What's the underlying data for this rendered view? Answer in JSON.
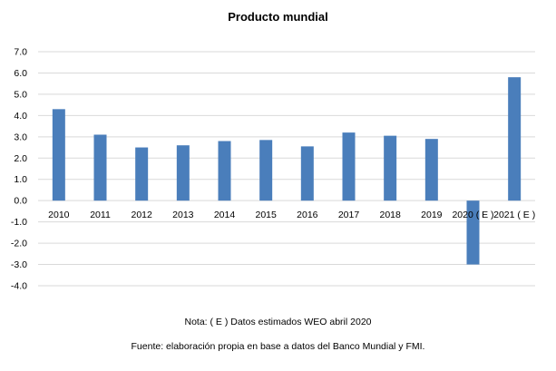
{
  "chart_data": {
    "type": "bar",
    "title": "Producto mundial",
    "categories": [
      "2010",
      "2011",
      "2012",
      "2013",
      "2014",
      "2015",
      "2016",
      "2017",
      "2018",
      "2019",
      "2020 ( E )",
      "2021 ( E )"
    ],
    "values": [
      4.3,
      3.1,
      2.5,
      2.6,
      2.8,
      2.85,
      2.55,
      3.2,
      3.05,
      2.9,
      -3.0,
      5.8
    ],
    "ylim": [
      -4.0,
      7.0
    ],
    "yticks": [
      "7.0",
      "6.0",
      "5.0",
      "4.0",
      "3.0",
      "2.0",
      "1.0",
      "0.0",
      "-1.0",
      "-2.0",
      "-3.0",
      "-4.0"
    ],
    "grid": true,
    "bar_color": "#4a7ebb",
    "grid_color": "#d9d9d9"
  },
  "notes": {
    "nota": "Nota: ( E ) Datos estimados WEO abril 2020",
    "fuente": "Fuente: elaboración propia en base a datos del Banco Mundial y FMI."
  }
}
